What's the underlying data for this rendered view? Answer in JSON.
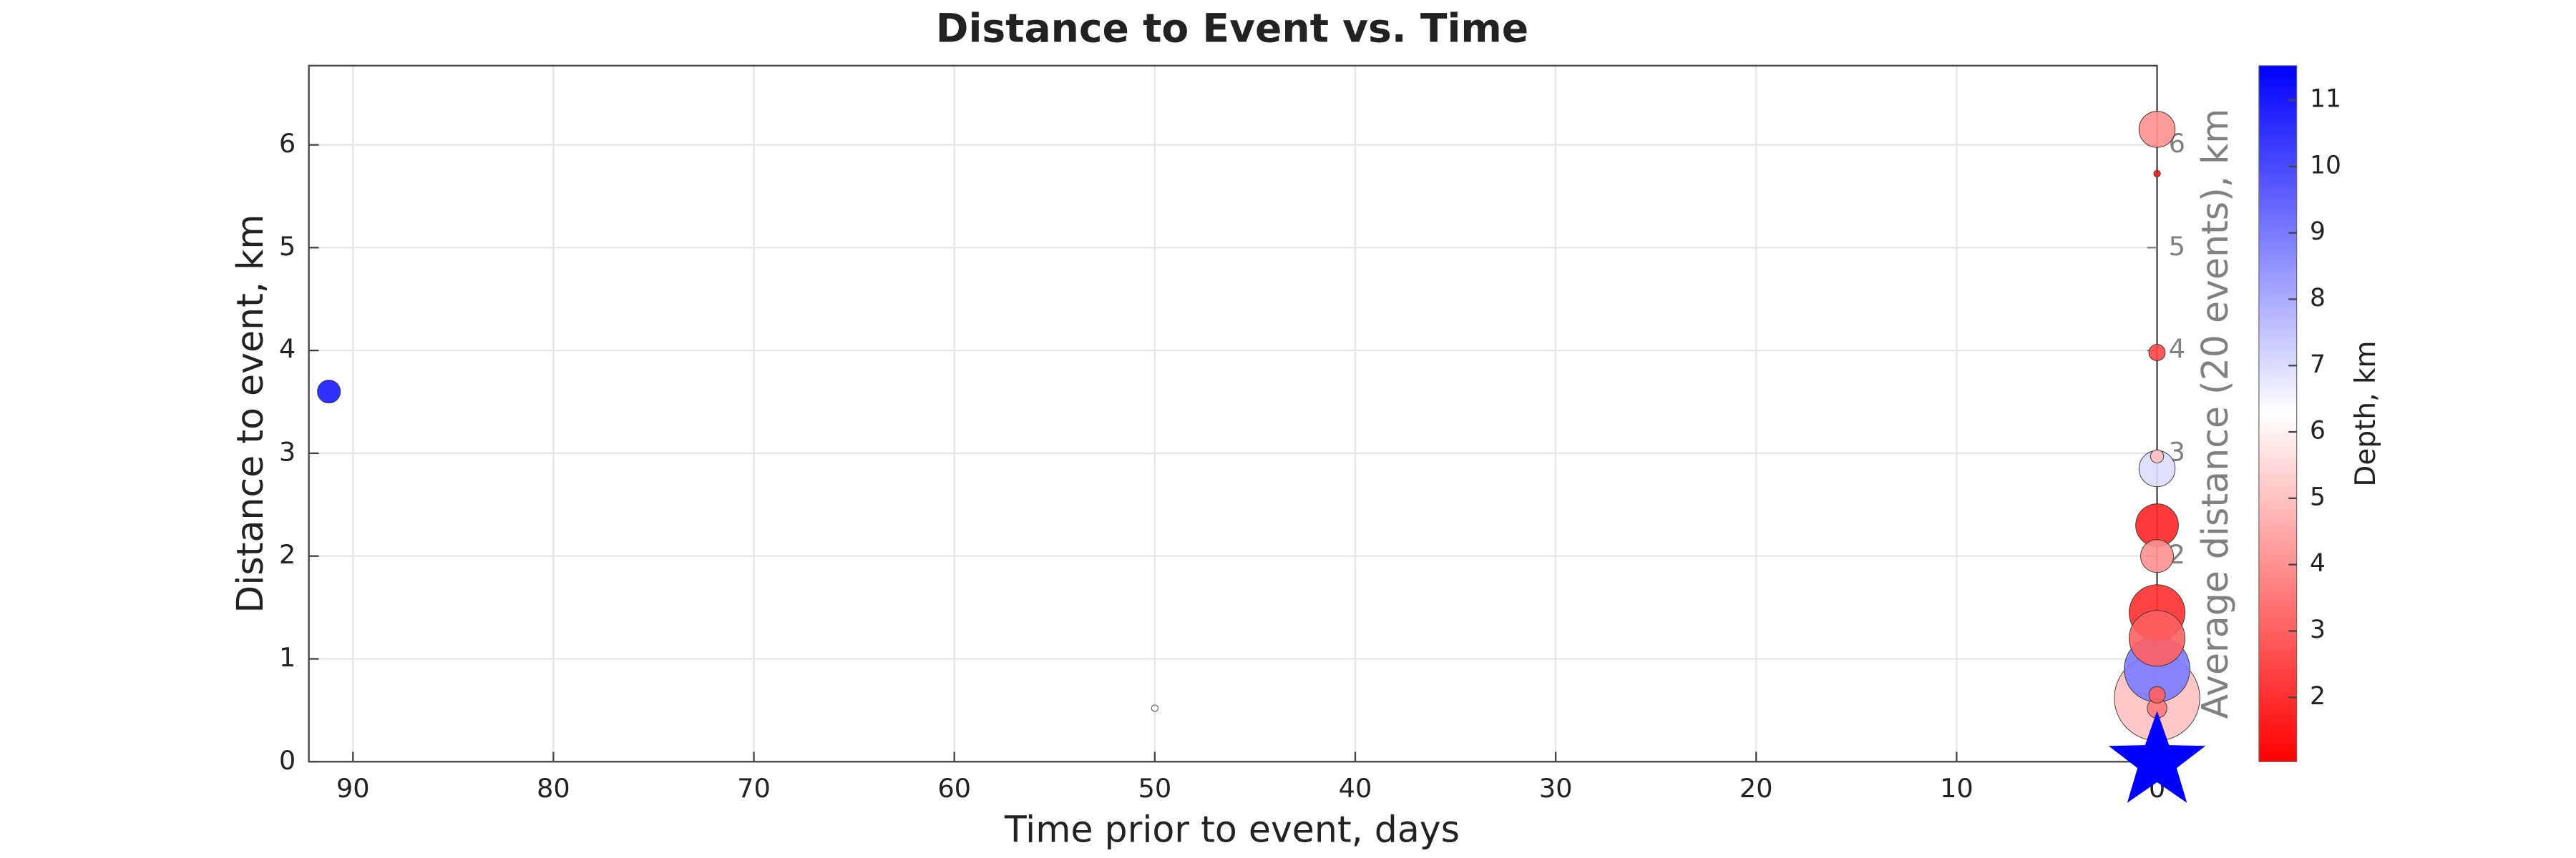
{
  "chart_data": {
    "type": "scatter",
    "title": "Distance to Event vs. Time",
    "xlabel": "Time prior to event, days",
    "ylabel": "Distance to event, km",
    "y2label": "Average distance (20 events), km",
    "xlim": [
      92.2,
      0
    ],
    "xticks": [
      90,
      80,
      70,
      60,
      50,
      40,
      30,
      20,
      10,
      0
    ],
    "ylim": [
      0,
      6.77
    ],
    "yticks": [
      0,
      1,
      2,
      3,
      4,
      5,
      6
    ],
    "y2lim": [
      0,
      6.77
    ],
    "y2ticks": [
      1,
      2,
      3,
      4,
      5,
      6
    ],
    "grid": true,
    "x": [
      91.2,
      50,
      0,
      0,
      0,
      0,
      0,
      0,
      0,
      0,
      0,
      0,
      0,
      0,
      0
    ],
    "y": [
      3.6,
      0.52,
      6.15,
      5.72,
      3.98,
      2.97,
      2.85,
      2.3,
      2.0,
      1.45,
      1.2,
      0.9,
      0.65,
      0.62,
      0.52
    ],
    "depth": [
      11,
      6.2,
      4,
      1.5,
      2.5,
      5,
      7,
      1.8,
      4,
      2,
      3,
      9,
      3,
      5,
      3.5
    ],
    "sizes": [
      49,
      4,
      121,
      4,
      25,
      16,
      121,
      169,
      100,
      289,
      289,
      400,
      25,
      676,
      36
    ],
    "event": {
      "x": 0,
      "y": 0,
      "color": "#0000ff"
    },
    "colorbar": {
      "label": "Depth, km",
      "clim": [
        1.03,
        11.52
      ],
      "ticks": [
        2,
        3,
        4,
        5,
        6,
        7,
        8,
        9,
        10,
        11
      ],
      "colors": [
        "#ff0000",
        "#ffffff",
        "#0000ff"
      ]
    }
  }
}
